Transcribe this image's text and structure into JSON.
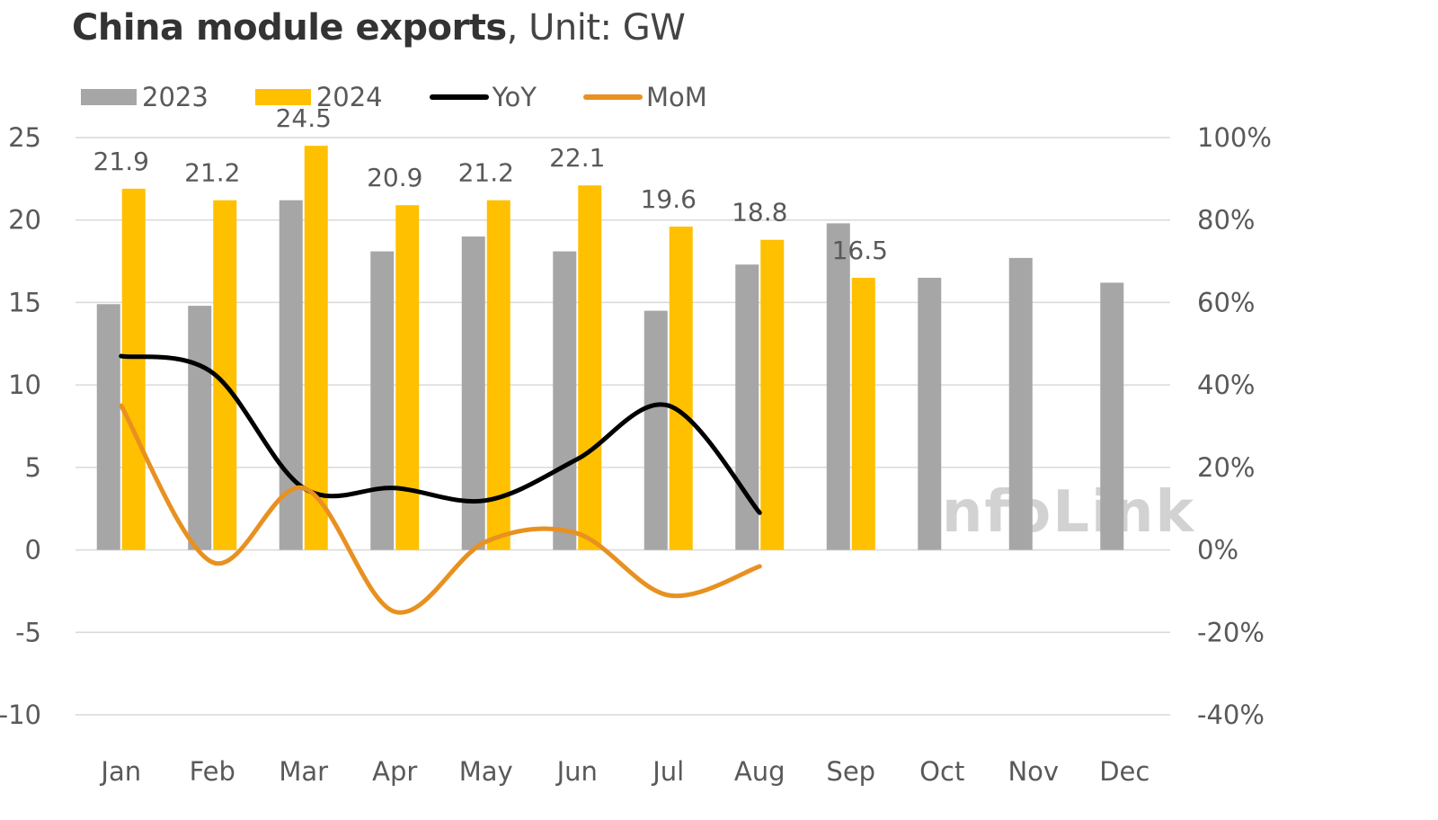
{
  "title": {
    "bold": "China module exports",
    "rest": ", Unit: GW"
  },
  "watermark": "InfoLink",
  "colors": {
    "s2023": "#a6a6a6",
    "s2024": "#ffc000",
    "yoy": "#000000",
    "mom": "#e89120",
    "grid": "#d9d9d9",
    "text": "#595959"
  },
  "chart_data": {
    "type": "bar",
    "categories": [
      "Jan",
      "Feb",
      "Mar",
      "Apr",
      "May",
      "Jun",
      "Jul",
      "Aug",
      "Sep",
      "Oct",
      "Nov",
      "Dec"
    ],
    "series": [
      {
        "name": "2023",
        "type": "bar",
        "axis": "left",
        "values": [
          14.9,
          14.8,
          21.2,
          18.1,
          19.0,
          18.1,
          14.5,
          17.3,
          19.8,
          16.5,
          17.7,
          16.2
        ]
      },
      {
        "name": "2024",
        "type": "bar",
        "axis": "left",
        "values": [
          21.9,
          21.2,
          24.5,
          20.9,
          21.2,
          22.1,
          19.6,
          18.8,
          16.5,
          null,
          null,
          null
        ],
        "data_labels": [
          "21.9",
          "21.2",
          "24.5",
          "20.9",
          "21.2",
          "22.1",
          "19.6",
          "18.8",
          "16.5"
        ]
      },
      {
        "name": "YoY",
        "type": "line",
        "axis": "right",
        "values": [
          47,
          43,
          15,
          15,
          12,
          22,
          35,
          9,
          null,
          null,
          null,
          null
        ]
      },
      {
        "name": "MoM",
        "type": "line",
        "axis": "right",
        "values": [
          35,
          -3,
          15,
          -15,
          2,
          4,
          -11,
          -4,
          null,
          null,
          null,
          null
        ]
      }
    ],
    "y_left": {
      "min": -10,
      "max": 25,
      "ticks": [
        "25",
        "20",
        "15",
        "10",
        "5",
        "0",
        "-5",
        "-10"
      ]
    },
    "y_right": {
      "min": -40,
      "max": 100,
      "ticks": [
        "100%",
        "80%",
        "60%",
        "40%",
        "20%",
        "0%",
        "-20%",
        "-40%"
      ]
    },
    "grid": true,
    "legend_position": "top-left"
  }
}
